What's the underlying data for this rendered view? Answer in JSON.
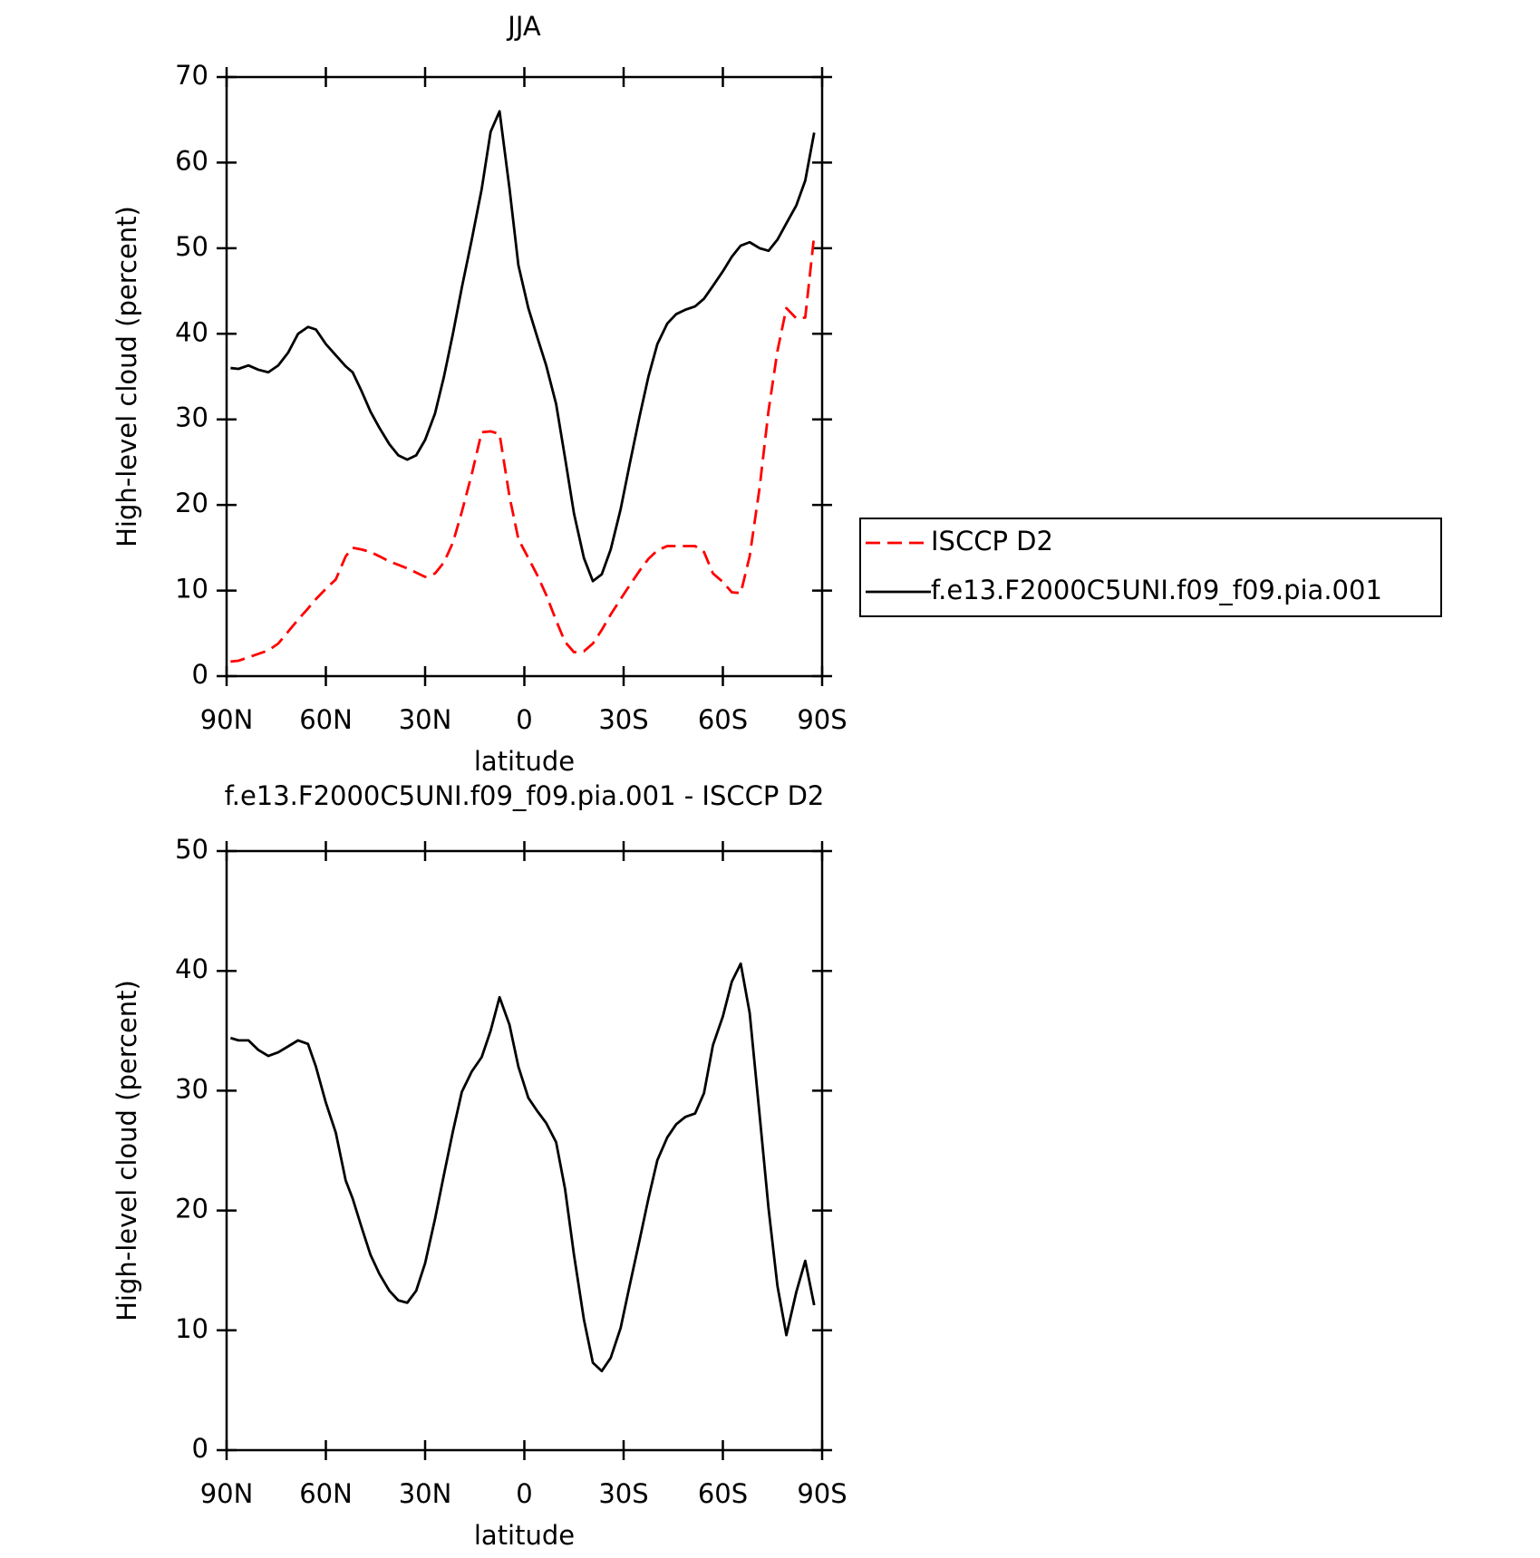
{
  "chart_data": [
    {
      "type": "line",
      "title": "JJA",
      "xlabel": "latitude",
      "ylabel": "High-level cloud (percent)",
      "x": [
        88.8,
        86.4,
        83.4,
        80.4,
        77.4,
        74.4,
        71.4,
        68.4,
        65.4,
        63,
        60,
        57,
        54,
        51.9,
        49.2,
        46.5,
        43.8,
        40.8,
        38.1,
        35.4,
        32.7,
        30,
        27,
        24.3,
        21.6,
        18.9,
        15.9,
        12.9,
        10.2,
        7.5,
        4.5,
        1.8,
        -1.2,
        -3.9,
        -6.6,
        -9.6,
        -12.3,
        -15,
        -18,
        -20.7,
        -23.4,
        -26.1,
        -29.1,
        -31.8,
        -34.8,
        -37.5,
        -40.2,
        -43.2,
        -45.9,
        -48.6,
        -51.6,
        -54.3,
        -57,
        -60,
        -62.7,
        -65.4,
        -68.1,
        -71.1,
        -73.8,
        -76.5,
        -79.2,
        -82.2,
        -84.9,
        -87.6
      ],
      "series": [
        {
          "name": "ISCCP D2",
          "color": "#ff0000",
          "dashed": true,
          "values": [
            1.7,
            1.8,
            2.2,
            2.6,
            3,
            3.8,
            5.2,
            6.6,
            7.9,
            9,
            10.2,
            11.3,
            14,
            15,
            14.8,
            14.5,
            14,
            13.4,
            13,
            12.6,
            12.1,
            11.6,
            12,
            13.3,
            15.6,
            19.2,
            23.6,
            28.5,
            28.6,
            28.3,
            21,
            16,
            13.8,
            11.8,
            9.5,
            6.5,
            4,
            2.8,
            2.9,
            3.8,
            5.4,
            7.2,
            9,
            10.6,
            12.3,
            13.7,
            14.7,
            15.2,
            15.2,
            15.2,
            15.2,
            14.5,
            12,
            11,
            9.8,
            9.7,
            14,
            22,
            31,
            38,
            43,
            41.8,
            41.9,
            51.5
          ]
        },
        {
          "name": "f.e13.F2000C5UNI.f09_f09.pia.001",
          "color": "#000000",
          "dashed": false,
          "values": [
            36,
            35.9,
            36.3,
            35.8,
            35.5,
            36.3,
            37.8,
            40,
            40.8,
            40.5,
            38.8,
            37.5,
            36.2,
            35.5,
            33.3,
            30.9,
            29,
            27.1,
            25.8,
            25.3,
            25.8,
            27.6,
            30.7,
            35,
            40,
            45.4,
            51,
            56.9,
            63.6,
            66,
            57,
            48,
            43,
            39.6,
            36.3,
            31.8,
            25.5,
            19,
            13.8,
            11.1,
            11.9,
            14.8,
            19.5,
            24.7,
            30.3,
            35,
            38.8,
            41.2,
            42.3,
            42.8,
            43.2,
            44.1,
            45.6,
            47.3,
            49,
            50.3,
            50.7,
            50,
            49.7,
            51,
            52.9,
            55,
            57.9,
            63.5
          ]
        }
      ],
      "xlim": [
        90,
        -90
      ],
      "xticks": [
        {
          "value": 90,
          "label": "90N"
        },
        {
          "value": 60,
          "label": "60N"
        },
        {
          "value": 30,
          "label": "30N"
        },
        0,
        {
          "value": -30,
          "label": "30S"
        },
        {
          "value": -60,
          "label": "60S"
        },
        {
          "value": -90,
          "label": "90S"
        }
      ],
      "ylim": [
        0,
        70
      ],
      "yticks": [
        0,
        10,
        20,
        30,
        40,
        50,
        60,
        70
      ],
      "legend": "right"
    },
    {
      "type": "line",
      "title": "f.e13.F2000C5UNI.f09_f09.pia.001 - ISCCP D2",
      "xlabel": "latitude",
      "ylabel": "High-level cloud (percent)",
      "x": [
        88.8,
        86.4,
        83.4,
        80.4,
        77.4,
        74.4,
        71.4,
        68.4,
        65.4,
        63,
        60,
        57,
        54,
        51.9,
        49.2,
        46.5,
        43.8,
        40.8,
        38.1,
        35.4,
        32.7,
        30,
        27,
        24.3,
        21.6,
        18.9,
        15.9,
        12.9,
        10.2,
        7.5,
        4.5,
        1.8,
        -1.2,
        -3.9,
        -6.6,
        -9.6,
        -12.3,
        -15,
        -18,
        -20.7,
        -23.4,
        -26.1,
        -29.1,
        -31.8,
        -34.8,
        -37.5,
        -40.2,
        -43.2,
        -45.9,
        -48.6,
        -51.6,
        -54.3,
        -57,
        -60,
        -62.7,
        -65.4,
        -68.1,
        -71.1,
        -73.8,
        -76.5,
        -79.2,
        -82.2,
        -84.9,
        -87.6
      ],
      "series": [
        {
          "color": "#000000",
          "dashed": false,
          "values": [
            34.4,
            34.2,
            34.2,
            33.4,
            32.9,
            33.2,
            33.7,
            34.2,
            33.9,
            32,
            29,
            26.5,
            22.5,
            21,
            18.6,
            16.3,
            14.7,
            13.3,
            12.5,
            12.3,
            13.3,
            15.6,
            19.3,
            23,
            26.6,
            29.9,
            31.6,
            32.8,
            35,
            37.8,
            35.5,
            32,
            29.4,
            28.3,
            27.3,
            25.7,
            21.8,
            16.3,
            10.9,
            7.3,
            6.6,
            7.7,
            10.2,
            13.7,
            17.5,
            21,
            24.2,
            26.1,
            27.2,
            27.8,
            28.1,
            29.8,
            33.8,
            36.2,
            39.1,
            40.6,
            36.5,
            28,
            20.2,
            13.7,
            9.6,
            13.2,
            15.8,
            12.1
          ]
        }
      ],
      "xlim": [
        90,
        -90
      ],
      "xticks": [
        {
          "value": 90,
          "label": "90N"
        },
        {
          "value": 60,
          "label": "60N"
        },
        {
          "value": 30,
          "label": "30N"
        },
        0,
        {
          "value": -30,
          "label": "30S"
        },
        {
          "value": -60,
          "label": "60S"
        },
        {
          "value": -90,
          "label": "90S"
        }
      ],
      "ylim": [
        0,
        50
      ],
      "yticks": [
        0,
        10,
        20,
        30,
        40,
        50
      ]
    }
  ]
}
